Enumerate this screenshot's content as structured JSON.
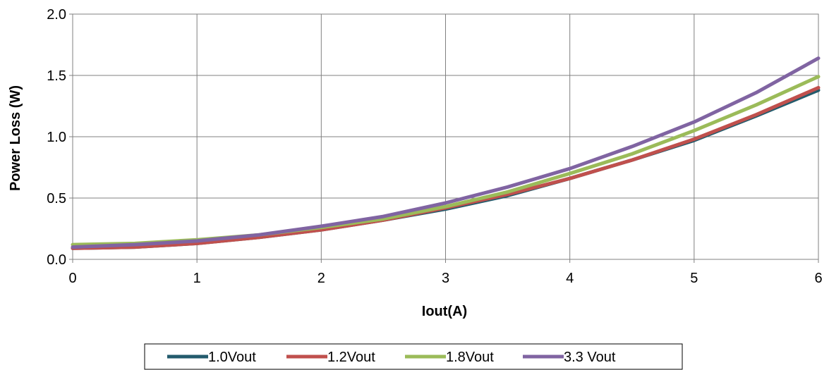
{
  "chart_data": {
    "type": "line",
    "title": "",
    "xlabel": "Iout(A)",
    "ylabel": "Power Loss (W)",
    "xlim": [
      0,
      6
    ],
    "ylim": [
      0,
      2.0
    ],
    "xticks": [
      "0",
      "1",
      "2",
      "3",
      "4",
      "5",
      "6"
    ],
    "yticks": [
      "0.0",
      "0.5",
      "1.0",
      "1.5",
      "2.0"
    ],
    "grid": true,
    "legend_position": "bottom",
    "x": [
      0,
      0.5,
      1,
      1.5,
      2,
      2.5,
      3,
      3.5,
      4,
      4.5,
      5,
      5.5,
      6
    ],
    "series": [
      {
        "name": "1.0Vout",
        "color": "#235b6c",
        "values": [
          0.09,
          0.1,
          0.13,
          0.18,
          0.24,
          0.32,
          0.41,
          0.52,
          0.66,
          0.81,
          0.97,
          1.17,
          1.38
        ]
      },
      {
        "name": "1.2Vout",
        "color": "#c0504d",
        "values": [
          0.09,
          0.1,
          0.13,
          0.18,
          0.24,
          0.32,
          0.42,
          0.53,
          0.66,
          0.81,
          0.98,
          1.18,
          1.4
        ]
      },
      {
        "name": "1.8Vout",
        "color": "#9bbb59",
        "values": [
          0.12,
          0.13,
          0.16,
          0.2,
          0.26,
          0.33,
          0.43,
          0.55,
          0.7,
          0.86,
          1.05,
          1.26,
          1.49
        ]
      },
      {
        "name": "3.3 Vout",
        "color": "#8064a2",
        "values": [
          0.1,
          0.12,
          0.15,
          0.2,
          0.27,
          0.35,
          0.46,
          0.59,
          0.74,
          0.92,
          1.12,
          1.36,
          1.64
        ]
      }
    ]
  }
}
